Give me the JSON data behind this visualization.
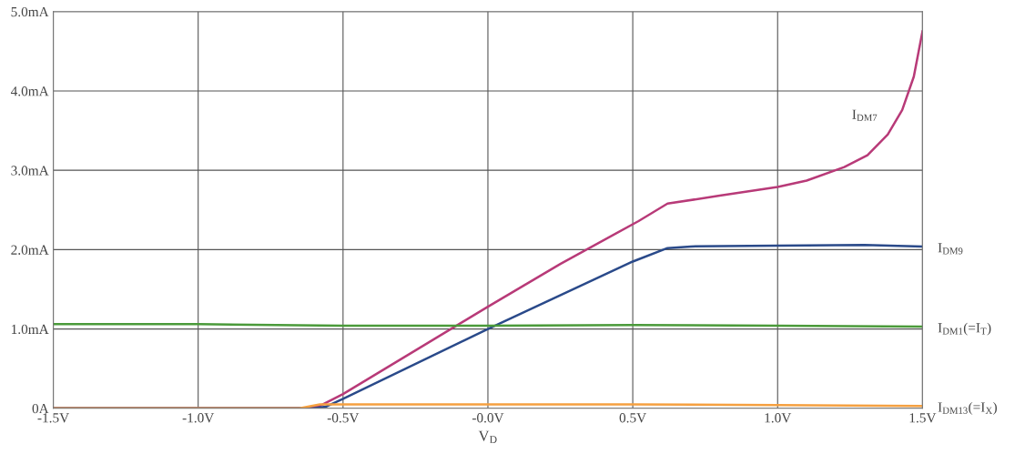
{
  "chart_data": {
    "type": "line",
    "xlabel": "V$_{D}$",
    "xlim": [
      -1.5,
      1.5
    ],
    "ylim": [
      0,
      5.0
    ],
    "xticks": [
      {
        "value": -1.5,
        "label": "-1.5V"
      },
      {
        "value": -1.0,
        "label": "-1.0V"
      },
      {
        "value": -0.5,
        "label": "-0.5V"
      },
      {
        "value": 0,
        "label": "-0.0V"
      },
      {
        "value": 0.5,
        "label": "0.5V"
      },
      {
        "value": 1.0,
        "label": "1.0V"
      },
      {
        "value": 1.5,
        "label": "1.5V"
      }
    ],
    "yticks": [
      {
        "value": 0,
        "label": "0A"
      },
      {
        "value": 1.0,
        "label": "1.0mA"
      },
      {
        "value": 2.0,
        "label": "2.0mA"
      },
      {
        "value": 3.0,
        "label": "3.0mA"
      },
      {
        "value": 4.0,
        "label": "4.0mA"
      },
      {
        "value": 5.0,
        "label": "5.0mA"
      }
    ],
    "grid": true,
    "legend": false,
    "marker": "none",
    "line_style": "solid",
    "series": [
      {
        "name": "I$_{DM7}$",
        "color": "#b83a78",
        "x": [
          -1.5,
          -0.62,
          -0.58,
          -0.5,
          -0.25,
          0,
          0.25,
          0.52,
          0.62,
          0.8,
          1.0,
          1.1,
          1.23,
          1.31,
          1.38,
          1.43,
          1.47,
          1.5
        ],
        "values": [
          0,
          0,
          0.03,
          0.18,
          0.73,
          1.28,
          1.82,
          2.36,
          2.58,
          2.68,
          2.79,
          2.87,
          3.04,
          3.19,
          3.45,
          3.76,
          4.18,
          4.75
        ]
      },
      {
        "name": "I$_{DM9}$",
        "color": "#2a4a8a",
        "x": [
          -1.5,
          -0.6,
          -0.56,
          -0.5,
          0,
          0.5,
          0.62,
          0.7,
          1.0,
          1.3,
          1.5
        ],
        "values": [
          0,
          0,
          0.02,
          0.12,
          1.0,
          1.85,
          2.02,
          2.04,
          2.05,
          2.06,
          2.04
        ]
      },
      {
        "name": "I$_{DM1}$(=I$_{T}$)",
        "color": "#4a9a3a",
        "x": [
          -1.5,
          -1.0,
          -0.5,
          0,
          0.5,
          1.0,
          1.5
        ],
        "values": [
          1.06,
          1.06,
          1.04,
          1.04,
          1.05,
          1.04,
          1.03
        ]
      },
      {
        "name": "I$_{DM13}$(=I$_{X}$)",
        "color": "#f5a040",
        "x": [
          -1.5,
          -0.65,
          -0.58,
          -0.5,
          0,
          0.5,
          1.0,
          1.5
        ],
        "values": [
          0,
          0,
          0.05,
          0.05,
          0.05,
          0.05,
          0.04,
          0.03
        ]
      }
    ]
  }
}
